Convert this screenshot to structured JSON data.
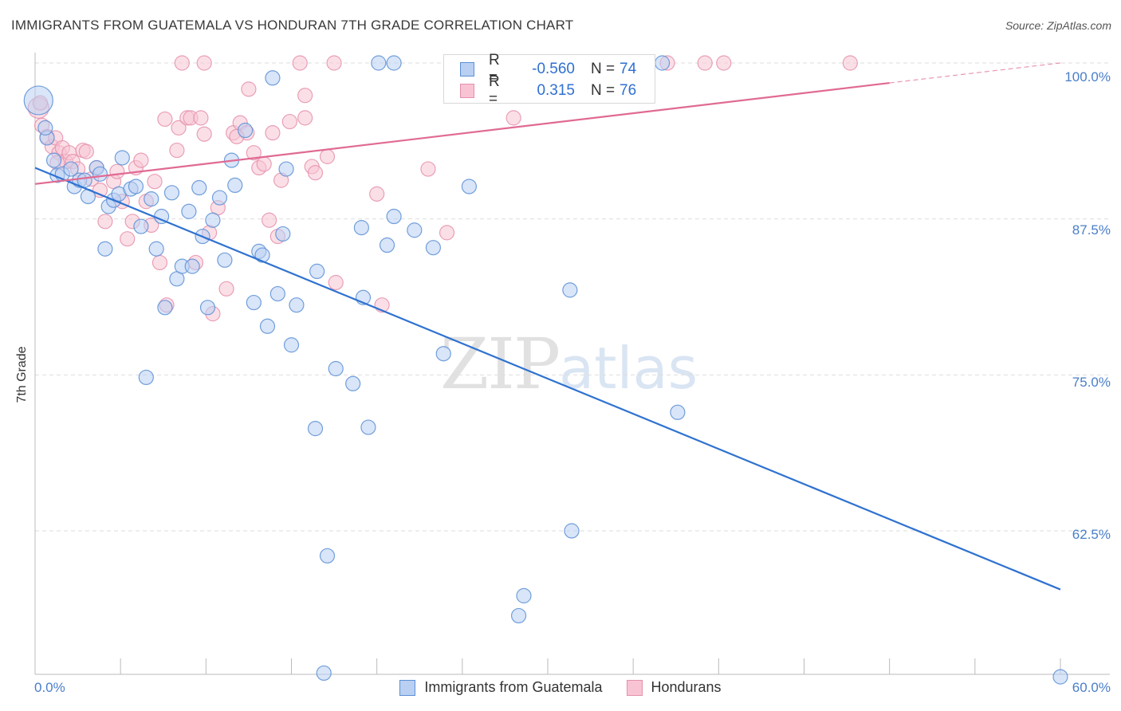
{
  "header": {
    "title": "IMMIGRANTS FROM GUATEMALA VS HONDURAN 7TH GRADE CORRELATION CHART",
    "source": "Source: ZipAtlas.com"
  },
  "watermark": {
    "zip": "ZIP",
    "atlas": "atlas"
  },
  "legend": {
    "rows": [
      {
        "r_label": "R =",
        "r_value": "-0.560",
        "n_label": "N =",
        "n_value": "74"
      },
      {
        "r_label": "R =",
        "r_value": "0.315",
        "n_label": "N =",
        "n_value": "76"
      }
    ]
  },
  "bottom_legend": {
    "guatemala": "Immigrants from Guatemala",
    "hondurans": "Hondurans"
  },
  "colors": {
    "guatemala_fill": "#b9d0f2",
    "guatemala_stroke": "#5b8fd6",
    "guatemala_line": "#2f72d0",
    "hondurans_fill": "#f8c4d3",
    "hondurans_stroke": "#e590ab",
    "hondurans_line": "#e06a93",
    "grid": "#dddddd",
    "tick_label": "#4a7ec9"
  },
  "chart_data": {
    "type": "scatter",
    "title": "IMMIGRANTS FROM GUATEMALA VS HONDURAN 7TH GRADE CORRELATION CHART",
    "xlabel": "",
    "ylabel": "7th Grade",
    "xlim": [
      0,
      60
    ],
    "ylim": [
      51,
      100
    ],
    "x_tick_labels": [
      "0.0%",
      "60.0%"
    ],
    "y_ticks": [
      {
        "value": 100,
        "label": "100.0%"
      },
      {
        "value": 87.5,
        "label": "87.5%"
      },
      {
        "value": 75,
        "label": "75.0%"
      },
      {
        "value": 62.5,
        "label": "62.5%"
      }
    ],
    "grid": true,
    "legend_position": "top-center",
    "series": [
      {
        "name": "Immigrants from Guatemala",
        "r": -0.56,
        "n": 74,
        "trend": {
          "x": [
            0,
            60
          ],
          "y": [
            91.6,
            57.8
          ]
        },
        "points": [
          [
            0.2,
            97.0
          ],
          [
            0.7,
            94.0
          ],
          [
            1.1,
            92.2
          ],
          [
            1.3,
            91.0
          ],
          [
            1.6,
            91.1
          ],
          [
            2.1,
            91.5
          ],
          [
            2.3,
            90.1
          ],
          [
            2.6,
            90.6
          ],
          [
            2.9,
            90.6
          ],
          [
            3.1,
            89.3
          ],
          [
            3.6,
            91.6
          ],
          [
            3.8,
            91.1
          ],
          [
            4.1,
            85.1
          ],
          [
            4.3,
            88.5
          ],
          [
            4.6,
            89.0
          ],
          [
            4.9,
            89.5
          ],
          [
            5.1,
            92.4
          ],
          [
            5.6,
            89.9
          ],
          [
            5.9,
            90.1
          ],
          [
            6.2,
            86.9
          ],
          [
            6.5,
            74.8
          ],
          [
            6.8,
            89.1
          ],
          [
            7.1,
            85.1
          ],
          [
            7.4,
            87.7
          ],
          [
            7.6,
            80.4
          ],
          [
            8.0,
            89.6
          ],
          [
            8.3,
            82.7
          ],
          [
            8.6,
            83.7
          ],
          [
            9.0,
            88.1
          ],
          [
            9.2,
            83.7
          ],
          [
            9.6,
            90.0
          ],
          [
            9.8,
            86.1
          ],
          [
            10.1,
            80.4
          ],
          [
            10.4,
            87.4
          ],
          [
            10.8,
            89.2
          ],
          [
            11.1,
            84.2
          ],
          [
            11.5,
            92.2
          ],
          [
            11.7,
            90.2
          ],
          [
            12.3,
            94.6
          ],
          [
            12.8,
            80.8
          ],
          [
            13.1,
            84.9
          ],
          [
            13.3,
            84.6
          ],
          [
            13.6,
            78.9
          ],
          [
            13.9,
            98.8
          ],
          [
            14.2,
            81.5
          ],
          [
            14.5,
            86.3
          ],
          [
            14.7,
            91.5
          ],
          [
            15.0,
            77.4
          ],
          [
            15.3,
            80.6
          ],
          [
            16.4,
            70.7
          ],
          [
            16.5,
            83.3
          ],
          [
            16.9,
            51.1
          ],
          [
            17.1,
            60.5
          ],
          [
            17.6,
            75.5
          ],
          [
            18.6,
            74.3
          ],
          [
            19.2,
            81.2
          ],
          [
            19.5,
            70.8
          ],
          [
            19.1,
            86.8
          ],
          [
            20.1,
            100.0
          ],
          [
            20.6,
            85.4
          ],
          [
            21.0,
            100.0
          ],
          [
            21.0,
            87.7
          ],
          [
            22.2,
            86.6
          ],
          [
            23.3,
            85.2
          ],
          [
            23.9,
            76.7
          ],
          [
            25.4,
            90.1
          ],
          [
            28.3,
            55.7
          ],
          [
            28.6,
            57.3
          ],
          [
            31.3,
            81.8
          ],
          [
            31.4,
            62.5
          ],
          [
            36.7,
            100.0
          ],
          [
            37.6,
            72.0
          ],
          [
            60.0,
            50.8
          ],
          [
            0.6,
            94.8
          ]
        ]
      },
      {
        "name": "Hondurans",
        "r": 0.315,
        "n": 76,
        "trend": {
          "x": [
            0,
            50
          ],
          "y": [
            90.3,
            98.4
          ]
        },
        "trend_dashed": {
          "x": [
            50,
            60
          ],
          "y": [
            98.4,
            100.0
          ]
        },
        "points": [
          [
            0.2,
            96.4
          ],
          [
            0.4,
            95.0
          ],
          [
            0.7,
            94.1
          ],
          [
            1.0,
            93.3
          ],
          [
            1.2,
            94.0
          ],
          [
            1.4,
            92.8
          ],
          [
            1.6,
            93.2
          ],
          [
            1.8,
            92.1
          ],
          [
            2.0,
            92.8
          ],
          [
            2.2,
            92.1
          ],
          [
            2.5,
            91.5
          ],
          [
            2.8,
            93.0
          ],
          [
            3.0,
            92.9
          ],
          [
            3.3,
            90.7
          ],
          [
            3.6,
            91.6
          ],
          [
            3.8,
            89.8
          ],
          [
            4.1,
            87.3
          ],
          [
            4.6,
            90.5
          ],
          [
            4.8,
            91.3
          ],
          [
            5.1,
            88.9
          ],
          [
            5.4,
            85.9
          ],
          [
            5.7,
            87.3
          ],
          [
            5.9,
            91.6
          ],
          [
            6.2,
            92.2
          ],
          [
            6.5,
            88.9
          ],
          [
            6.8,
            87.0
          ],
          [
            7.0,
            90.5
          ],
          [
            7.3,
            84.0
          ],
          [
            7.6,
            95.5
          ],
          [
            7.7,
            80.6
          ],
          [
            8.3,
            93.0
          ],
          [
            8.4,
            94.8
          ],
          [
            8.6,
            100.0
          ],
          [
            8.9,
            95.6
          ],
          [
            9.1,
            95.6
          ],
          [
            9.4,
            84.0
          ],
          [
            9.7,
            95.6
          ],
          [
            9.9,
            94.3
          ],
          [
            9.9,
            100.0
          ],
          [
            10.2,
            86.4
          ],
          [
            10.4,
            79.9
          ],
          [
            10.7,
            88.4
          ],
          [
            11.2,
            81.9
          ],
          [
            11.6,
            94.4
          ],
          [
            12.0,
            95.2
          ],
          [
            12.4,
            94.4
          ],
          [
            12.5,
            97.9
          ],
          [
            12.8,
            92.8
          ],
          [
            13.1,
            91.6
          ],
          [
            13.4,
            91.9
          ],
          [
            13.7,
            87.4
          ],
          [
            13.9,
            94.4
          ],
          [
            14.2,
            86.1
          ],
          [
            14.4,
            90.6
          ],
          [
            14.9,
            95.3
          ],
          [
            15.5,
            100.0
          ],
          [
            15.8,
            97.4
          ],
          [
            15.8,
            95.6
          ],
          [
            16.2,
            91.7
          ],
          [
            16.4,
            91.2
          ],
          [
            17.1,
            92.5
          ],
          [
            17.5,
            100.0
          ],
          [
            17.6,
            82.4
          ],
          [
            20.0,
            89.5
          ],
          [
            20.3,
            80.6
          ],
          [
            23.0,
            91.5
          ],
          [
            24.1,
            86.4
          ],
          [
            25.7,
            100.0
          ],
          [
            28.0,
            95.6
          ],
          [
            37.0,
            100.0
          ],
          [
            39.2,
            100.0
          ],
          [
            40.3,
            100.0
          ],
          [
            47.7,
            100.0
          ],
          [
            0.3,
            96.8
          ],
          [
            1.3,
            92.0
          ],
          [
            11.8,
            94.1
          ]
        ]
      }
    ]
  }
}
